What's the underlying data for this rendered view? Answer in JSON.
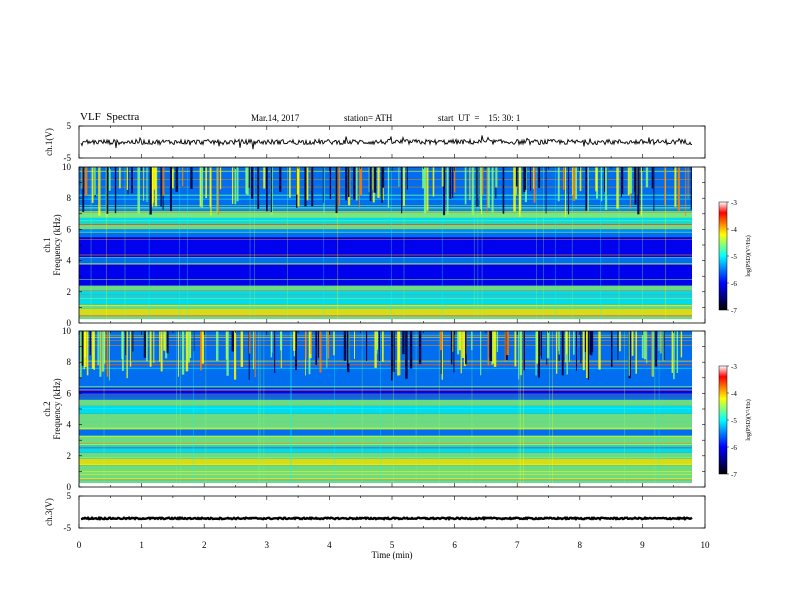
{
  "header": {
    "title": "VLF  Spectra",
    "date": "Mar.14, 2017",
    "station": "station= ATH",
    "start_time": "start  UT  =    15: 30: 1"
  },
  "chart_data": [
    {
      "type": "line",
      "panel": "ch1-waveform",
      "ylabel": "ch.1(V)",
      "ylim": [
        -5,
        5
      ],
      "yticks": [
        "5",
        "-5"
      ],
      "xlim": [
        0,
        10
      ],
      "series": [
        {
          "values_description": "noisy waveform centered near 0 V, spanning 0 to ~9.8 min"
        }
      ]
    },
    {
      "type": "heatmap",
      "panel": "ch1-spectrogram",
      "ylabel": "ch.1\nFrequency (kHz)",
      "ylabel_lines": [
        "ch.1",
        "Frequency (kHz)"
      ],
      "ylim": [
        0,
        10
      ],
      "yticks": [
        "0",
        "2",
        "4",
        "6",
        "8",
        "10"
      ],
      "xlim": [
        0,
        10
      ],
      "colorbar": {
        "label": "log(PSD)(V²/Hz)",
        "ticks": [
          "-3",
          "-4",
          "-5",
          "-6",
          "-7"
        ],
        "range": [
          -7,
          -3
        ]
      }
    },
    {
      "type": "heatmap",
      "panel": "ch2-spectrogram",
      "ylabel_lines": [
        "ch.2",
        "Frequency (kHz)"
      ],
      "ylim": [
        0,
        10
      ],
      "yticks": [
        "0",
        "2",
        "4",
        "6",
        "8",
        "10"
      ],
      "xlim": [
        0,
        10
      ],
      "colorbar": {
        "label": "log(PSD)(V²/Hz)",
        "ticks": [
          "-3",
          "-4",
          "-5",
          "-6",
          "-7"
        ],
        "range": [
          -7,
          -3
        ]
      }
    },
    {
      "type": "line",
      "panel": "ch3-waveform",
      "ylabel": "ch.3(V)",
      "ylim": [
        -5,
        5
      ],
      "yticks": [
        "5",
        "-5"
      ],
      "xlim": [
        0,
        10
      ],
      "series": [
        {
          "values_description": "near-constant level around -2 V, spanning 0 to ~9.8 min"
        }
      ]
    }
  ],
  "xaxis": {
    "label": "Time  (min)",
    "ticks": [
      "0",
      "1",
      "2",
      "3",
      "4",
      "5",
      "6",
      "7",
      "8",
      "9",
      "10"
    ]
  },
  "colors": {
    "colormap": [
      "#00007f",
      "#0000ff",
      "#007fff",
      "#00ffff",
      "#7fff7f",
      "#ffff00",
      "#ff7f00",
      "#ff0000",
      "#ffffff"
    ]
  }
}
